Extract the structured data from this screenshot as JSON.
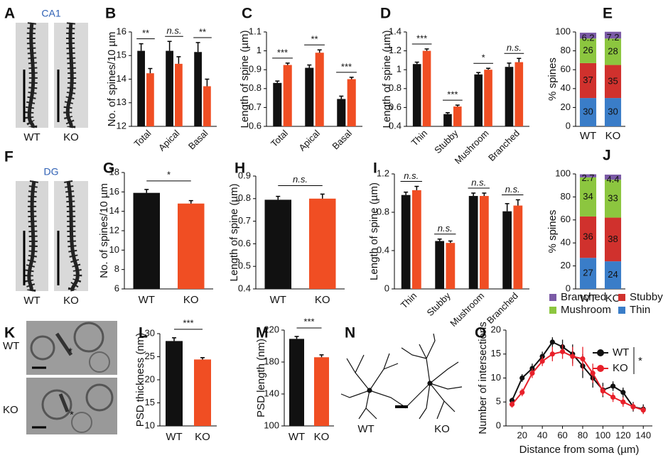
{
  "panels": {
    "A": {
      "letter": "A",
      "title": "CA1",
      "labels": [
        "WT",
        "KO"
      ]
    },
    "F": {
      "letter": "F",
      "title": "DG",
      "labels": [
        "WT",
        "KO"
      ]
    },
    "K": {
      "letter": "K",
      "labels": [
        "WT",
        "KO"
      ],
      "annotations": [
        "*",
        "*"
      ]
    },
    "N": {
      "letter": "N",
      "labels": [
        "WT",
        "KO"
      ]
    }
  },
  "chart_data": [
    {
      "type": "bar",
      "panel": "B",
      "ylabel": "No. of spines/10 µm",
      "ylim": [
        12,
        16
      ],
      "yticks": [
        12,
        13,
        14,
        15,
        16
      ],
      "categories": [
        "Total",
        "Apical",
        "Basal"
      ],
      "series": [
        {
          "color": "#111111",
          "values": [
            15.2,
            15.2,
            15.15
          ],
          "errors": [
            0.3,
            0.4,
            0.4
          ]
        },
        {
          "color": "#f04e23",
          "values": [
            14.25,
            14.65,
            13.7
          ],
          "errors": [
            0.2,
            0.3,
            0.3
          ]
        }
      ],
      "annotations": [
        "**",
        "n.s.",
        "**"
      ]
    },
    {
      "type": "bar",
      "panel": "C",
      "ylabel": "Length of spine (µm)",
      "ylim": [
        0.6,
        1.1
      ],
      "yticks": [
        0.6,
        0.7,
        0.8,
        0.9,
        1,
        1.1
      ],
      "categories": [
        "Total",
        "Apical",
        "Basal"
      ],
      "series": [
        {
          "color": "#111111",
          "values": [
            0.83,
            0.91,
            0.745
          ],
          "errors": [
            0.01,
            0.015,
            0.015
          ]
        },
        {
          "color": "#f04e23",
          "values": [
            0.925,
            0.99,
            0.85
          ],
          "errors": [
            0.01,
            0.015,
            0.01
          ]
        }
      ],
      "annotations": [
        "***",
        "**",
        "***"
      ]
    },
    {
      "type": "bar",
      "panel": "D",
      "ylabel": "Length of spine (µm)",
      "ylim": [
        0.4,
        1.4
      ],
      "yticks": [
        0.4,
        0.6,
        0.8,
        1,
        1.2,
        1.4
      ],
      "categories": [
        "Thin",
        "Stubby",
        "Mushroom",
        "Branched"
      ],
      "series": [
        {
          "color": "#111111",
          "values": [
            1.06,
            0.53,
            0.95,
            1.03
          ],
          "errors": [
            0.02,
            0.015,
            0.02,
            0.04
          ]
        },
        {
          "color": "#f04e23",
          "values": [
            1.2,
            0.61,
            1.0,
            1.08
          ],
          "errors": [
            0.02,
            0.015,
            0.015,
            0.04
          ]
        }
      ],
      "annotations": [
        "***",
        "***",
        "*",
        "n.s."
      ]
    },
    {
      "type": "stacked",
      "panel": "E",
      "ylabel": "% spines",
      "ylim": [
        0,
        100
      ],
      "yticks": [
        0,
        20,
        40,
        60,
        80,
        100
      ],
      "categories": [
        "WT",
        "KO"
      ],
      "series": [
        {
          "color": "#3a7dc8",
          "values": [
            30,
            30
          ]
        },
        {
          "color": "#d0312d",
          "values": [
            37,
            35
          ]
        },
        {
          "color": "#8cc63f",
          "values": [
            26,
            28
          ]
        },
        {
          "color": "#7b5aa6",
          "values": [
            6.2,
            7.2
          ]
        }
      ]
    },
    {
      "type": "bar",
      "panel": "G",
      "ylabel": "No. of spines/10 µm",
      "ylim": [
        6,
        18
      ],
      "yticks": [
        6,
        8,
        10,
        12,
        14,
        16,
        18
      ],
      "categories": [
        "WT",
        "KO"
      ],
      "values": [
        15.9,
        14.8
      ],
      "errors": [
        0.35,
        0.3
      ],
      "colors": [
        "#111111",
        "#f04e23"
      ],
      "annotation": "*"
    },
    {
      "type": "bar",
      "panel": "H",
      "ylabel": "Length of spine (µm)",
      "ylim": [
        0.4,
        0.9
      ],
      "yticks": [
        0.4,
        0.5,
        0.6,
        0.7,
        0.8,
        0.9
      ],
      "categories": [
        "WT",
        "KO"
      ],
      "values": [
        0.795,
        0.8
      ],
      "errors": [
        0.015,
        0.02
      ],
      "colors": [
        "#111111",
        "#f04e23"
      ],
      "annotation": "n.s."
    },
    {
      "type": "bar",
      "panel": "I",
      "ylabel": "Length of spine (µm)",
      "ylim": [
        0,
        1.2
      ],
      "yticks": [
        0,
        0.4,
        0.8,
        1.2
      ],
      "categories": [
        "Thin",
        "Stubby",
        "Mushroom",
        "Branched"
      ],
      "series": [
        {
          "color": "#111111",
          "values": [
            0.98,
            0.5,
            0.97,
            0.81
          ],
          "errors": [
            0.03,
            0.02,
            0.03,
            0.08
          ]
        },
        {
          "color": "#f04e23",
          "values": [
            1.03,
            0.48,
            0.97,
            0.87
          ],
          "errors": [
            0.04,
            0.02,
            0.03,
            0.06
          ]
        }
      ],
      "annotations": [
        "n.s.",
        "n.s.",
        "n.s.",
        "n.s."
      ]
    },
    {
      "type": "stacked",
      "panel": "J",
      "ylabel": "% spines",
      "ylim": [
        0,
        100
      ],
      "yticks": [
        0,
        20,
        40,
        60,
        80,
        100
      ],
      "categories": [
        "WT",
        "KO"
      ],
      "series": [
        {
          "name": "Thin",
          "color": "#3a7dc8",
          "values": [
            27,
            24
          ]
        },
        {
          "name": "Stubby",
          "color": "#d0312d",
          "values": [
            36,
            38
          ]
        },
        {
          "name": "Mushroom",
          "color": "#8cc63f",
          "values": [
            34,
            33
          ]
        },
        {
          "name": "Branched",
          "color": "#7b5aa6",
          "values": [
            2.7,
            4.4
          ]
        }
      ]
    },
    {
      "type": "bar",
      "panel": "L",
      "ylabel": "PSD thickness (nm)",
      "ylim": [
        10,
        30
      ],
      "yticks": [
        10,
        15,
        20,
        25,
        30
      ],
      "categories": [
        "WT",
        "KO"
      ],
      "values": [
        28.4,
        24.4
      ],
      "errors": [
        0.7,
        0.4
      ],
      "colors": [
        "#111111",
        "#f04e23"
      ],
      "annotation": "***"
    },
    {
      "type": "bar",
      "panel": "M",
      "ylabel": "PSD length (nm)",
      "ylim": [
        100,
        220
      ],
      "yticks": [
        100,
        140,
        180,
        220
      ],
      "categories": [
        "WT",
        "KO"
      ],
      "values": [
        209,
        186
      ],
      "errors": [
        3,
        3
      ],
      "colors": [
        "#111111",
        "#f04e23"
      ],
      "annotation": "***"
    },
    {
      "type": "line",
      "panel": "O",
      "ylabel": "Number of intersections",
      "xlabel": "Distance from soma (µm)",
      "xlim": [
        4,
        149
      ],
      "xticks": [
        20,
        40,
        60,
        80,
        100,
        120,
        140
      ],
      "ylim": [
        0,
        20
      ],
      "yticks": [
        0,
        5,
        10,
        15,
        20
      ],
      "x": [
        10,
        20,
        30,
        40,
        50,
        60,
        70,
        80,
        90,
        100,
        110,
        120,
        130,
        140
      ],
      "series": [
        {
          "name": "WT",
          "color": "#111111",
          "values": [
            5.3,
            10,
            12,
            14.5,
            17.5,
            16.5,
            15,
            12.5,
            10,
            7.5,
            8.3,
            7,
            4,
            3.5
          ],
          "errors": [
            0.6,
            0.8,
            1,
            1,
            1,
            1.5,
            2,
            2.5,
            2,
            1.5,
            1,
            1,
            1,
            1
          ]
        },
        {
          "name": "KO",
          "color": "#e8202a",
          "values": [
            4.5,
            7,
            11,
            13.5,
            15,
            15.5,
            14.5,
            14,
            11,
            7.3,
            6,
            5,
            4,
            3.3
          ],
          "errors": [
            0.7,
            0.8,
            1,
            1,
            1.5,
            1.5,
            2,
            2.5,
            2,
            1,
            1,
            1,
            0.8,
            0.8
          ]
        }
      ],
      "annotation": "*"
    }
  ]
}
